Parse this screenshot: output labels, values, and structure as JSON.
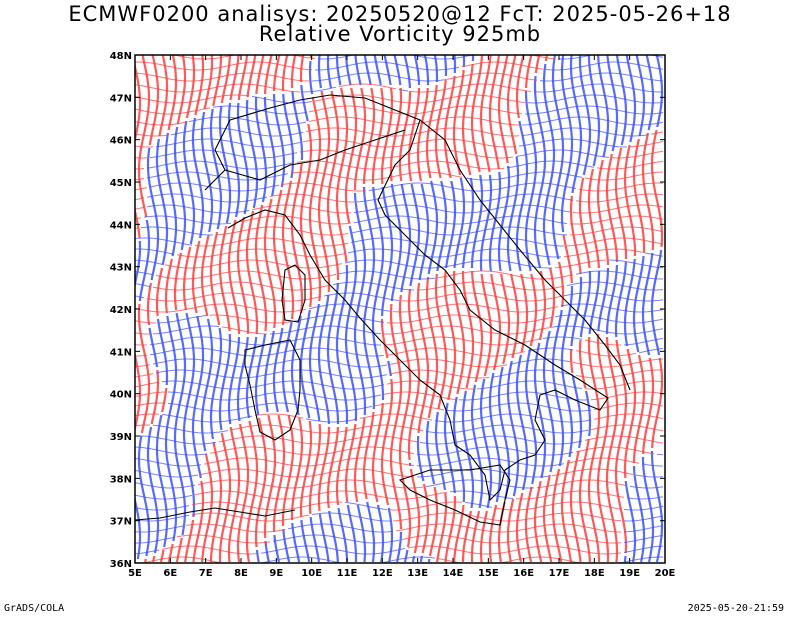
{
  "title_line1": "ECMWF0200 analisys: 20250520@12 FcT: 2025-05-26+18",
  "title_line2": "Relative Vorticity 925mb",
  "footer_left": "GrADS/COLA",
  "footer_right": "2025-05-20-21:59",
  "colors": {
    "positive": "#ff3c3c",
    "negative": "#3c50ff",
    "coast": "#000000",
    "frame": "#000000"
  },
  "map": {
    "lon_ticks": [
      "5E",
      "6E",
      "7E",
      "8E",
      "9E",
      "10E",
      "11E",
      "12E",
      "13E",
      "14E",
      "15E",
      "16E",
      "17E",
      "18E",
      "19E",
      "20E"
    ],
    "lat_ticks": [
      "36N",
      "37N",
      "38N",
      "39N",
      "40N",
      "41N",
      "42N",
      "43N",
      "44N",
      "45N",
      "46N",
      "47N",
      "48N"
    ]
  }
}
